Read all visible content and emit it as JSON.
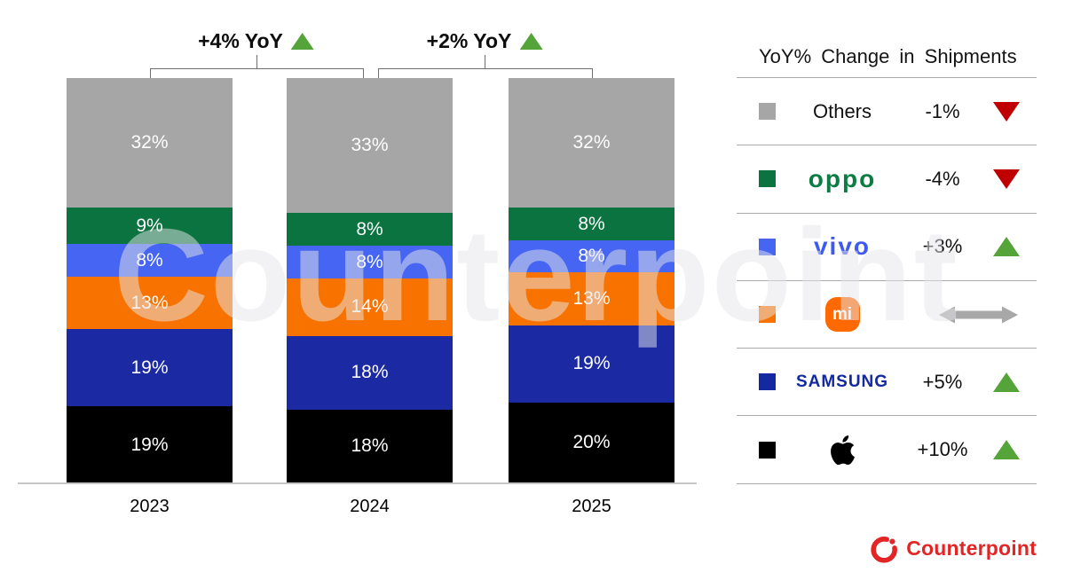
{
  "watermark": "Counterpoint",
  "chart_data": {
    "type": "bar",
    "stacked": true,
    "unit": "%",
    "title": "",
    "xlabel": "",
    "ylabel": "",
    "ylim": [
      0,
      100
    ],
    "grid": false,
    "legend_position": "right",
    "categories": [
      "2023",
      "2024",
      "2025"
    ],
    "series": [
      {
        "name": "Apple",
        "color": "#000000",
        "values": [
          19,
          18,
          20
        ]
      },
      {
        "name": "Samsung",
        "color": "#1b2aa3",
        "values": [
          19,
          18,
          19
        ]
      },
      {
        "name": "Xiaomi",
        "color": "#f87200",
        "values": [
          13,
          14,
          13
        ]
      },
      {
        "name": "vivo",
        "color": "#4565f2",
        "values": [
          8,
          8,
          8
        ]
      },
      {
        "name": "OPPO",
        "color": "#0a7340",
        "values": [
          9,
          8,
          8
        ]
      },
      {
        "name": "Others",
        "color": "#a6a6a6",
        "values": [
          32,
          33,
          32
        ]
      }
    ]
  },
  "annotations": [
    {
      "label": "+4% YoY",
      "direction": "up",
      "from": "2023",
      "to": "2024"
    },
    {
      "label": "+2% YoY",
      "direction": "up",
      "from": "2024",
      "to": "2025"
    }
  ],
  "legend": {
    "title": "YoY% Change in Shipments",
    "rows": [
      {
        "brand": "Others",
        "logo": "others",
        "logo_text": "Others",
        "swatch": "#a6a6a6",
        "change": "-1%",
        "direction": "down"
      },
      {
        "brand": "OPPO",
        "logo": "oppo",
        "logo_text": "oppo",
        "swatch": "#0a7340",
        "change": "-4%",
        "direction": "up-down-red"
      },
      {
        "brand": "vivo",
        "logo": "vivo",
        "logo_text": "vivo",
        "swatch": "#4565f2",
        "change": "+3%",
        "direction": "up"
      },
      {
        "brand": "Xiaomi",
        "logo": "mi",
        "logo_text": "mi",
        "swatch": "#f87200",
        "change": "",
        "direction": "flat"
      },
      {
        "brand": "Samsung",
        "logo": "samsung",
        "logo_text": "SAMSUNG",
        "swatch": "#1428a0",
        "change": "+5%",
        "direction": "up"
      },
      {
        "brand": "Apple",
        "logo": "apple",
        "logo_text": "",
        "swatch": "#000000",
        "change": "+10%",
        "direction": "up"
      }
    ]
  },
  "footer": {
    "brand": "Counterpoint"
  },
  "colors": {
    "up_triangle": "#55a43a",
    "down_triangle": "#c00000",
    "flat_arrow": "#a8a8a8",
    "brand_red": "#e32526",
    "bracket_line": "#6e6e6e"
  }
}
